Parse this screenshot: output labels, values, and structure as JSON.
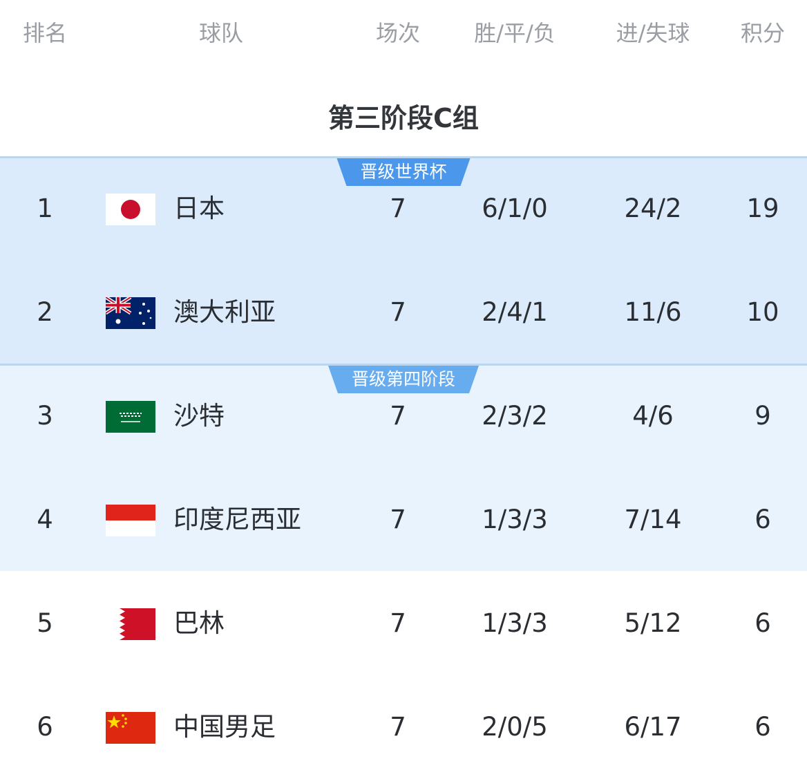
{
  "header": {
    "rank": "排名",
    "team": "球队",
    "played": "场次",
    "wdl": "胜/平/负",
    "goals": "进/失球",
    "points": "积分"
  },
  "group_title": "第三阶段C组",
  "zones": [
    {
      "label": "晋级世界杯",
      "color": "#4a97ec",
      "background": "#dcebfb"
    },
    {
      "label": "晋级第四阶段",
      "color": "#68acf0",
      "background": "#e8f3fd"
    }
  ],
  "rows": [
    {
      "rank": "1",
      "flag": "japan-flag",
      "team": "日本",
      "played": "7",
      "wdl": "6/1/0",
      "goals": "24/2",
      "points": "19"
    },
    {
      "rank": "2",
      "flag": "australia-flag",
      "team": "澳大利亚",
      "played": "7",
      "wdl": "2/4/1",
      "goals": "11/6",
      "points": "10"
    },
    {
      "rank": "3",
      "flag": "saudi-arabia-flag",
      "team": "沙特",
      "played": "7",
      "wdl": "2/3/2",
      "goals": "4/6",
      "points": "9"
    },
    {
      "rank": "4",
      "flag": "indonesia-flag",
      "team": "印度尼西亚",
      "played": "7",
      "wdl": "1/3/3",
      "goals": "7/14",
      "points": "6"
    },
    {
      "rank": "5",
      "flag": "bahrain-flag",
      "team": "巴林",
      "played": "7",
      "wdl": "1/3/3",
      "goals": "5/12",
      "points": "6"
    },
    {
      "rank": "6",
      "flag": "china-flag",
      "team": "中国男足",
      "played": "7",
      "wdl": "2/0/5",
      "goals": "6/17",
      "points": "6"
    }
  ]
}
